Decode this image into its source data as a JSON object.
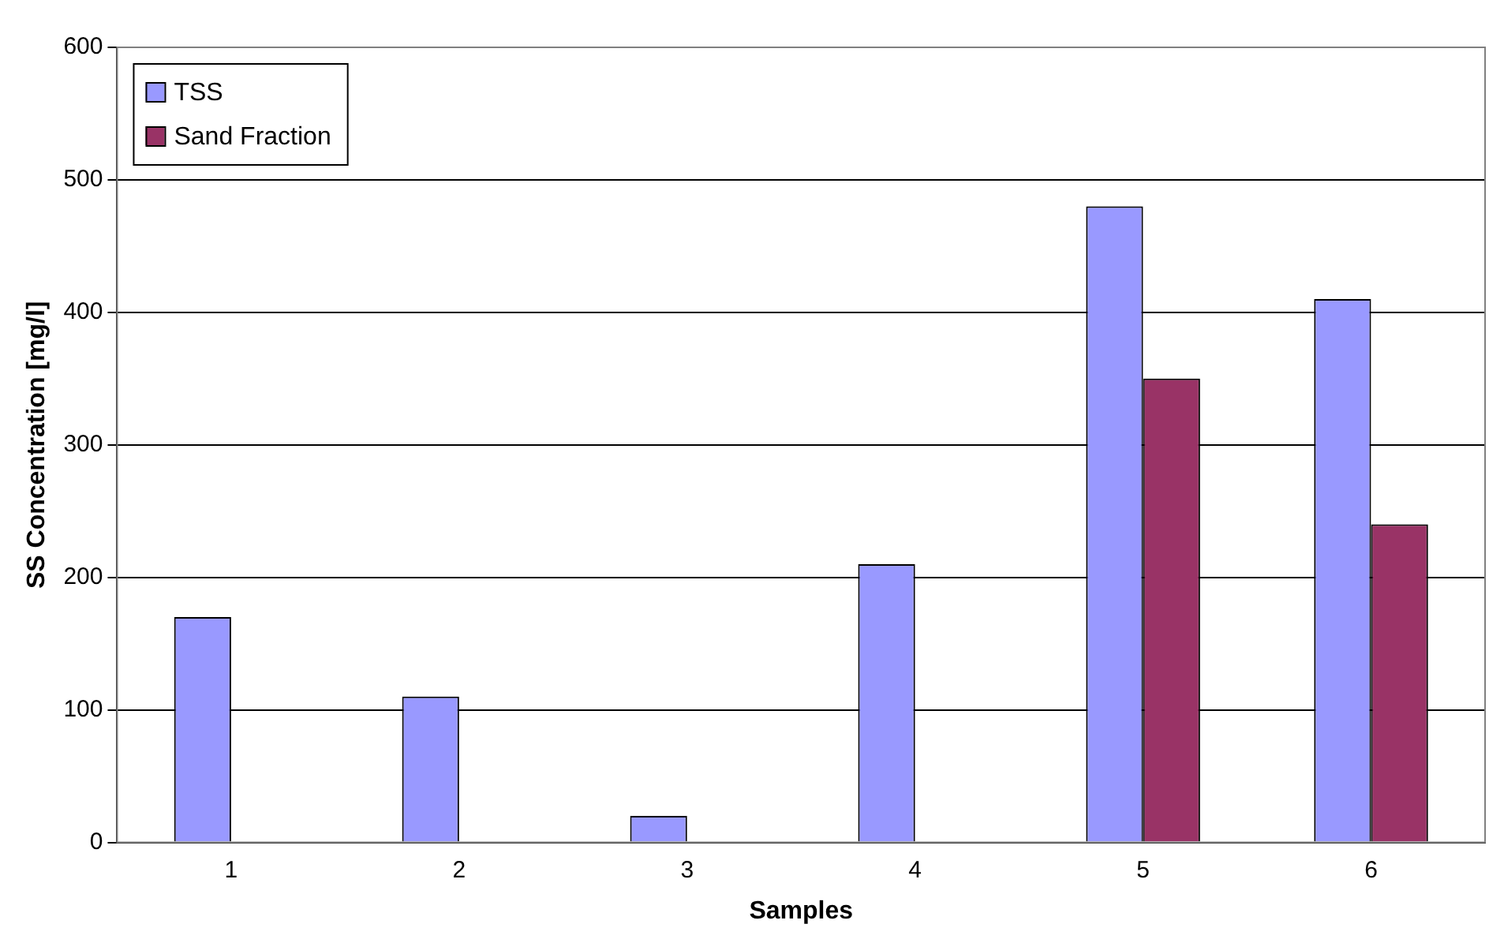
{
  "chart_data": {
    "type": "bar",
    "xlabel": "Samples",
    "ylabel": "SS Concentration [mg/l]",
    "categories": [
      "1",
      "2",
      "3",
      "4",
      "5",
      "6"
    ],
    "series": [
      {
        "name": "TSS",
        "color": "#9999ff",
        "values": [
          170,
          110,
          20,
          210,
          480,
          410
        ]
      },
      {
        "name": "Sand Fraction",
        "color": "#993366",
        "values": [
          null,
          null,
          null,
          null,
          350,
          240
        ]
      }
    ],
    "ylim": [
      0,
      600
    ],
    "yticks": [
      0,
      100,
      200,
      300,
      400,
      500,
      600
    ],
    "grid": "y",
    "legend": "top left"
  }
}
